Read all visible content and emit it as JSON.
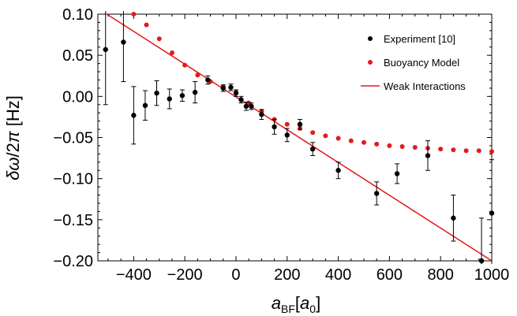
{
  "chart_data": {
    "type": "scatter",
    "xlabel": "a_BF[a_0]",
    "ylabel": "δω/2π [Hz]",
    "xlim": [
      -540,
      1000
    ],
    "ylim": [
      -0.2,
      0.1
    ],
    "xticks": [
      -400,
      -200,
      0,
      200,
      400,
      600,
      800,
      1000
    ],
    "xtick_labels": [
      "−400",
      "−200",
      "0",
      "200",
      "400",
      "600",
      "800",
      "1000"
    ],
    "yticks": [
      0.1,
      0.05,
      0.0,
      -0.05,
      -0.1,
      -0.15,
      -0.2
    ],
    "ytick_labels": [
      "0.10",
      "0.05",
      "0.00",
      "−0.05",
      "−0.10",
      "−0.15",
      "−0.20"
    ],
    "grid": false,
    "legend_position": "top-right",
    "colors": {
      "experiment": "#000000",
      "model": "#e31a1c",
      "weak": "#e31a1c"
    },
    "series": [
      {
        "name": "Experiment [10]",
        "kind": "points-with-errorbars",
        "x": [
          -510,
          -440,
          -400,
          -355,
          -310,
          -260,
          -210,
          -160,
          -110,
          -50,
          -20,
          0,
          20,
          40,
          60,
          100,
          150,
          200,
          250,
          300,
          400,
          550,
          630,
          750,
          850,
          960,
          1000
        ],
        "y": [
          0.057,
          0.066,
          -0.023,
          -0.011,
          0.004,
          -0.003,
          0.001,
          0.005,
          0.02,
          0.01,
          0.011,
          0.004,
          -0.004,
          -0.012,
          -0.012,
          -0.022,
          -0.037,
          -0.047,
          -0.034,
          -0.064,
          -0.09,
          -0.118,
          -0.094,
          -0.072,
          -0.148,
          -0.2,
          -0.142
        ],
        "err": [
          0.067,
          0.048,
          0.035,
          0.018,
          0.015,
          0.012,
          0.007,
          0.013,
          0.005,
          0.004,
          0.004,
          0.004,
          0.004,
          0.005,
          0.004,
          0.006,
          0.009,
          0.008,
          0.006,
          0.008,
          0.01,
          0.014,
          0.012,
          0.018,
          0.028,
          0.052,
          0.065
        ]
      },
      {
        "name": "Buoyancy Model",
        "kind": "points",
        "x": [
          -400,
          -350,
          -300,
          -250,
          -200,
          -150,
          -100,
          -50,
          0,
          50,
          100,
          150,
          200,
          250,
          300,
          350,
          400,
          450,
          500,
          550,
          600,
          650,
          700,
          750,
          800,
          850,
          900,
          950,
          1000
        ],
        "y": [
          0.1,
          0.087,
          0.07,
          0.053,
          0.038,
          0.026,
          0.018,
          0.012,
          0.005,
          -0.008,
          -0.018,
          -0.028,
          -0.034,
          -0.039,
          -0.044,
          -0.048,
          -0.051,
          -0.054,
          -0.056,
          -0.058,
          -0.06,
          -0.061,
          -0.062,
          -0.063,
          -0.064,
          -0.065,
          -0.066,
          -0.066,
          -0.067
        ]
      },
      {
        "name": "Weak Interactions",
        "kind": "line",
        "x": [
          -505,
          1000
        ],
        "y": [
          0.1,
          -0.2
        ]
      }
    ]
  }
}
